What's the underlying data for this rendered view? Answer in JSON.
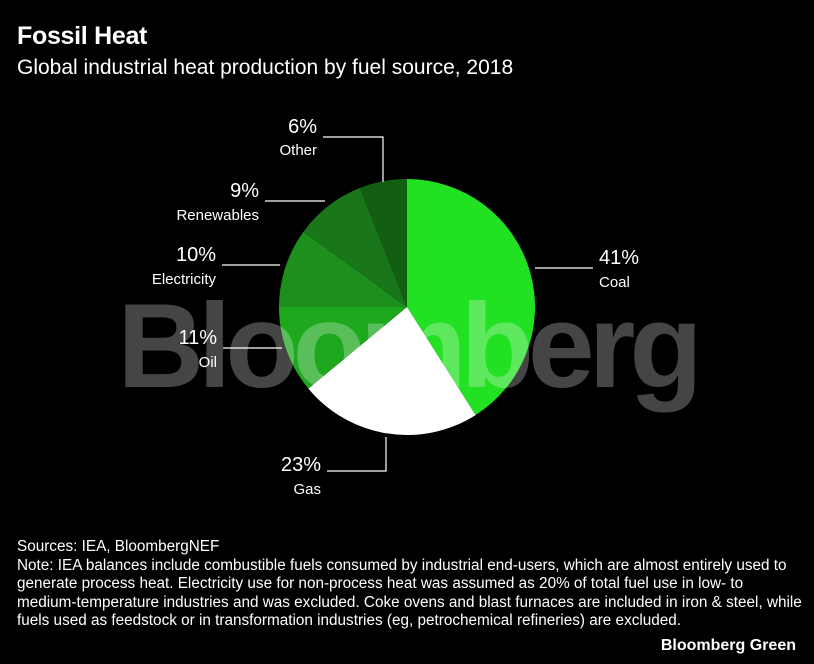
{
  "chart_data": {
    "type": "pie",
    "title": "Fossil Heat",
    "subtitle": "Global industrial heat production by fuel source, 2018",
    "slices": [
      {
        "label": "Coal",
        "value": 41,
        "value_label": "41%",
        "color": "#22e022"
      },
      {
        "label": "Gas",
        "value": 23,
        "value_label": "23%",
        "color": "#ffffff"
      },
      {
        "label": "Oil",
        "value": 11,
        "value_label": "11%",
        "color": "#1ea81e"
      },
      {
        "label": "Electricity",
        "value": 10,
        "value_label": "10%",
        "color": "#1c8f1c"
      },
      {
        "label": "Renewables",
        "value": 9,
        "value_label": "9%",
        "color": "#197719"
      },
      {
        "label": "Other",
        "value": 6,
        "value_label": "6%",
        "color": "#145e14"
      }
    ],
    "watermark": "Bloomberg"
  },
  "footer": {
    "sources": "Sources: IEA, BloombergNEF",
    "note": "Note: IEA balances include combustible fuels consumed by industrial end-users, which are almost entirely used to generate process heat. Electricity use for non-process heat was assumed as 20% of total fuel use in low- to medium-temperature industries and was excluded. Coke ovens and blast furnaces are included in iron & steel, while fuels used as feedstock or in transformation industries (eg, petrochemical refineries) are excluded."
  },
  "brand": "Bloomberg Green"
}
